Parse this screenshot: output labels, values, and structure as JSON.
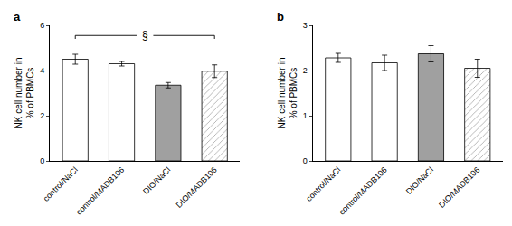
{
  "chart_data": [
    {
      "type": "bar",
      "title": "a",
      "categories": [
        "control/NaCl",
        "control/MADB106",
        "DIO/NaCl",
        "DIO/MADB106"
      ],
      "values": [
        4.5,
        4.3,
        3.35,
        3.97
      ],
      "errors": [
        0.22,
        0.1,
        0.12,
        0.28
      ],
      "colors": [
        "white",
        "white",
        "#a0a0a0",
        "#a0a0a0"
      ],
      "marker": [
        "plain",
        "hatched",
        "plain",
        "hatched"
      ],
      "ylabel": "NK cell number in\n% of PBMCs",
      "ylim": [
        0,
        6
      ],
      "yticks": [
        0,
        2,
        4,
        6
      ],
      "grid": false,
      "annotations": [
        {
          "text": "§",
          "from": "control/NaCl",
          "to": "DIO/MADB106",
          "y": 5.55
        }
      ]
    },
    {
      "type": "bar",
      "title": "b",
      "categories": [
        "control/NaCl",
        "control/MADB106",
        "DIO/NaCl",
        "DIO/MADB106"
      ],
      "values": [
        2.28,
        2.17,
        2.37,
        2.05
      ],
      "errors": [
        0.1,
        0.17,
        0.18,
        0.2
      ],
      "colors": [
        "white",
        "white",
        "#a0a0a0",
        "#a0a0a0"
      ],
      "marker": [
        "plain",
        "hatched",
        "plain",
        "hatched"
      ],
      "ylabel": "NK cell number in\n% of PBMCs",
      "ylim": [
        0,
        3
      ],
      "yticks": [
        0,
        1,
        2,
        3
      ],
      "grid": false
    }
  ]
}
